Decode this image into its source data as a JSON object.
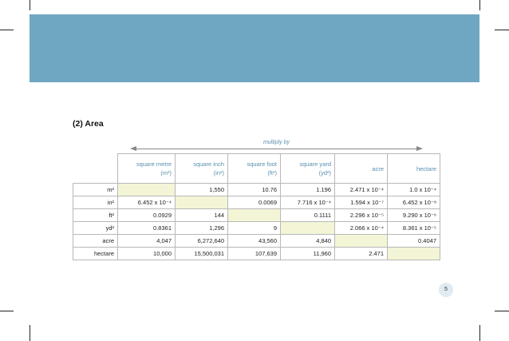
{
  "section_title": "(2) Area",
  "multiply_label": "multiply by",
  "columns": [
    {
      "name": "square metre",
      "unit": "(m²)"
    },
    {
      "name": "square inch",
      "unit": "(in²)"
    },
    {
      "name": "square foot",
      "unit": "(ft²)"
    },
    {
      "name": "square  yard",
      "unit": "(yd²)"
    },
    {
      "name": "acre",
      "unit": ""
    },
    {
      "name": "hectare",
      "unit": ""
    }
  ],
  "rows": [
    {
      "label": "m²",
      "cells": [
        "",
        "1,550",
        "10.76",
        "1.196",
        "2.471 x 10⁻⁴",
        "1.0 x 10⁻⁴"
      ]
    },
    {
      "label": "in²",
      "cells": [
        "6.452 x 10⁻⁴",
        "",
        "0.0069",
        "7.716 x 10⁻⁴",
        "1.594 x 10⁻⁷",
        "6.452 x 10⁻⁸"
      ]
    },
    {
      "label": "ft²",
      "cells": [
        "0.0929",
        "144",
        "",
        "0.1111",
        "2.296 x 10⁻⁵",
        "9.290 x 10⁻⁶"
      ]
    },
    {
      "label": "yd²",
      "cells": [
        "0.8361",
        "1,296",
        "9",
        "",
        "2.066 x 10⁻⁴",
        "8.361 x 10⁻⁵"
      ]
    },
    {
      "label": "acre",
      "cells": [
        "4,047",
        "6,272,640",
        "43,560",
        "4,840",
        "",
        "0.4047"
      ]
    },
    {
      "label": "hectare",
      "cells": [
        "10,000",
        "15,500,031",
        "107,639",
        "11,960",
        "2.471",
        ""
      ]
    }
  ],
  "page_number": "5",
  "colors": {
    "header_band": "#6fa7c2",
    "accent_text": "#5a8fb0",
    "diagonal_fill": "#f3f5d6",
    "page_number_bg": "#dfeaf1"
  }
}
